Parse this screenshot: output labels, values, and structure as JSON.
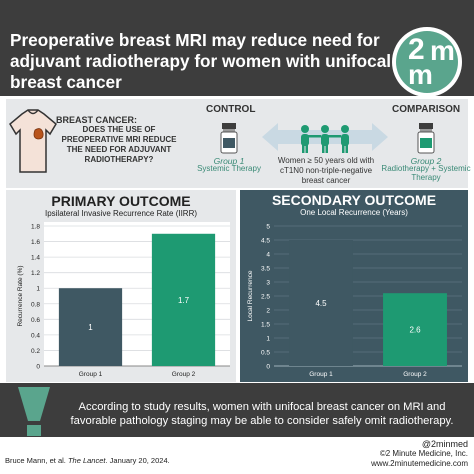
{
  "header": {
    "title": "Preoperative breast MRI may reduce need for adjuvant radiotherapy for women with unifocal breast cancer",
    "logo": {
      "line1_a": "2",
      "line1_b": "m",
      "line2": "m"
    }
  },
  "study": {
    "question_head": "BREAST CANCER:",
    "question_body": "DOES THE USE OF PREOPERATIVE MRI REDUCE THE NEED FOR ADJUVANT RADIOTHERAPY?",
    "control_label": "CONTROL",
    "comparison_label": "COMPARISON",
    "group1_title": "Group 1",
    "group1_sub": "Systemic Therapy",
    "group2_title": "Group 2",
    "group2_sub": "Radiotherapy + Systemic Therapy",
    "population": "Women ≥ 50 years old with cT1N0 non-triple-negative breast cancer"
  },
  "primary": {
    "title": "PRIMARY OUTCOME",
    "subtitle": "Ipsilateral Invasive Recurrence Rate (IIRR)"
  },
  "secondary": {
    "title": "SECONDARY OUTCOME",
    "subtitle": "One Local Recurrence (Years)"
  },
  "chart_data": [
    {
      "type": "bar",
      "title": "PRIMARY OUTCOME",
      "subtitle": "Ipsilateral Invasive Recurrence Rate (IIRR)",
      "ylabel": "Recurrence Rate (%)",
      "categories": [
        "Group 1",
        "Group 2"
      ],
      "values": [
        1,
        1.7
      ],
      "data_labels": [
        "1",
        "1.7"
      ],
      "ylim": [
        0,
        1.8
      ],
      "yticks": [
        "0",
        "0.2",
        "0.4",
        "0.6",
        "0.8",
        "1",
        "1.2",
        "1.4",
        "1.6",
        "1.8"
      ],
      "bar_colors": [
        "#3f5863",
        "#1e9a72"
      ],
      "grid": true
    },
    {
      "type": "bar",
      "title": "SECONDARY OUTCOME",
      "subtitle": "One Local Recurrence (Years)",
      "ylabel": "Local Recurrence",
      "categories": [
        "Group 1",
        "Group 2"
      ],
      "values": [
        4.5,
        2.6
      ],
      "data_labels": [
        "4.5",
        "2.6"
      ],
      "ylim": [
        0,
        5
      ],
      "yticks": [
        "0",
        "0.5",
        "1",
        "1.5",
        "2",
        "2.5",
        "3",
        "3.5",
        "4",
        "4.5",
        "5"
      ],
      "bar_colors": [
        "#3f5863",
        "#1e9a72"
      ],
      "grid": true
    }
  ],
  "conclusion": "According to study results, women with unifocal breast cancer on MRI and favorable pathology staging may be able to consider safely omit radiotherapy.",
  "citation": {
    "prefix": "Bruce Mann, et al. ",
    "journal": "The Lancet",
    "suffix": ". January 20, 2024."
  },
  "credits": {
    "handle": "@2minmed",
    "copyright": "©2 Minute Medicine, Inc.",
    "url": "www.2minutemedicine.com"
  },
  "colors": {
    "header_bg": "#3d3d3d",
    "accent_green": "#1e9a72",
    "slate": "#3f5863",
    "panel_light": "#e6e8ea"
  },
  "icons": [
    "shirt-icon",
    "vial-icon",
    "people-icon",
    "exclamation-icon",
    "double-arrow-icon"
  ]
}
